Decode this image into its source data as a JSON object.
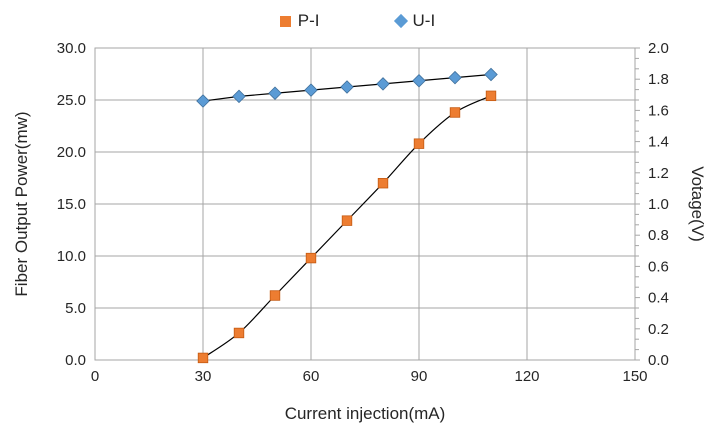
{
  "chart_data": {
    "type": "line",
    "title": "",
    "x": [
      30,
      40,
      50,
      60,
      70,
      80,
      90,
      100,
      110
    ],
    "series": [
      {
        "name": "P-I",
        "axis": "left",
        "marker": "square",
        "marker_color": "#ED7D31",
        "marker_edge": "#C55A11",
        "line_color": "#000000",
        "smooth": true,
        "values": [
          0.2,
          2.6,
          6.2,
          9.8,
          13.4,
          17.0,
          20.8,
          23.8,
          25.4
        ]
      },
      {
        "name": "U-I",
        "axis": "right",
        "marker": "diamond",
        "marker_color": "#5B9BD5",
        "marker_edge": "#41719C",
        "line_color": "#000000",
        "smooth": false,
        "values": [
          1.66,
          1.69,
          1.71,
          1.73,
          1.75,
          1.77,
          1.79,
          1.81,
          1.83
        ]
      }
    ],
    "xlabel": "Current injection(mA)",
    "ylabel_left": "Fiber Output Power(mw)",
    "ylabel_right": "Votage(V)",
    "xlim": [
      0,
      150
    ],
    "ylim_left": [
      0,
      30
    ],
    "ylim_right": [
      0,
      2
    ],
    "xticks": [
      "0",
      "30",
      "60",
      "90",
      "120",
      "150"
    ],
    "yticks_left": [
      "0.0",
      "5.0",
      "10.0",
      "15.0",
      "20.0",
      "25.0",
      "30.0"
    ],
    "yticks_right": [
      "0.0",
      "0.2",
      "0.4",
      "0.6",
      "0.8",
      "1.0",
      "1.2",
      "1.4",
      "1.6",
      "1.8",
      "2.0"
    ],
    "right_minor_ticks_per_major": 3,
    "grid": true,
    "legend_position": "top"
  },
  "legend": {
    "items": [
      {
        "label": "P-I",
        "marker": "square",
        "color": "#ED7D31"
      },
      {
        "label": "U-I",
        "marker": "diamond",
        "color": "#5B9BD5"
      }
    ]
  },
  "style": {
    "grid_color": "#A6A6A6",
    "border_color": "#A6A6A6",
    "tick_color": "#A6A6A6",
    "text_color": "#262626",
    "background": "#FFFFFF"
  }
}
